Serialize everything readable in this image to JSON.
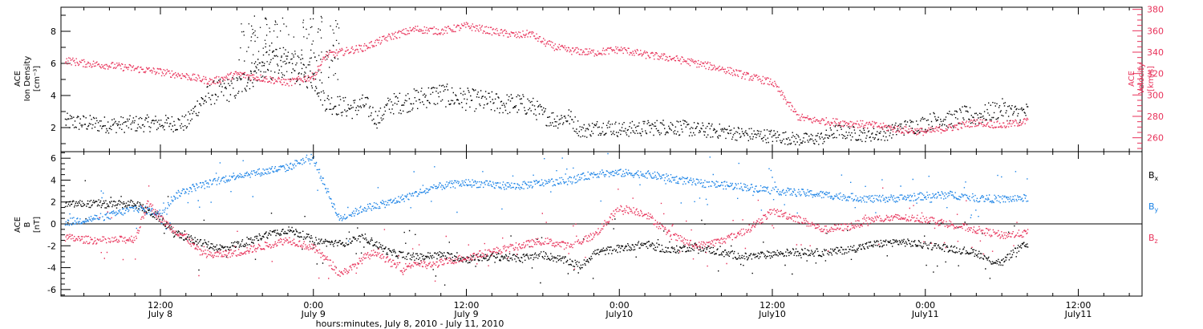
{
  "colors": {
    "black": "#000000",
    "pink": "#e8325a",
    "blue": "#1a82e6"
  },
  "x_axis": {
    "title": "hours:minutes, July  8, 2010 - July 11, 2010",
    "ticks": [
      {
        "hours": 12,
        "time": "12:00",
        "date": "July 8"
      },
      {
        "hours": 24,
        "time": "0:00",
        "date": "July 9"
      },
      {
        "hours": 36,
        "time": "12:00",
        "date": "July 9"
      },
      {
        "hours": 48,
        "time": "0:00",
        "date": "July10"
      },
      {
        "hours": 60,
        "time": "12:00",
        "date": "July10"
      },
      {
        "hours": 72,
        "time": "0:00",
        "date": "July11"
      },
      {
        "hours": 84,
        "time": "12:00",
        "date": "July11"
      }
    ],
    "xlim_hours": [
      4.2,
      89.0
    ],
    "note": "x values are hours after 0:00 July 8, 2010"
  },
  "chart_data": [
    {
      "type": "scatter",
      "panel": "top",
      "ylabel_left": [
        "ACE",
        "Ion Density",
        "[cm⁻³]"
      ],
      "ylabel_right": [
        "ACE",
        "Velocity",
        "[km/s]"
      ],
      "ylim_left": [
        0.5,
        9.5
      ],
      "ylim_right": [
        247,
        382
      ],
      "left_ticks": [
        "2",
        "4",
        "6",
        "8"
      ],
      "right_ticks": [
        "260",
        "280",
        "300",
        "320",
        "340",
        "360",
        "380"
      ],
      "series": [
        {
          "color": "#000000",
          "axis": "left",
          "x": [
            4.5,
            8,
            11,
            14,
            15,
            16,
            18,
            20,
            21,
            22,
            23,
            24,
            25,
            26,
            27,
            28,
            29,
            30,
            31,
            32,
            33,
            34,
            35,
            36,
            37,
            38,
            39,
            40,
            41,
            42,
            43,
            44,
            45,
            46,
            47,
            48,
            50,
            52,
            54,
            56,
            58,
            60,
            61,
            62,
            63,
            64,
            65,
            66,
            67,
            68,
            69,
            70,
            71,
            72,
            73,
            74,
            75,
            76,
            77,
            78,
            79,
            80
          ],
          "y": [
            2.4,
            2.2,
            2.3,
            2.3,
            3.5,
            4.2,
            4.5,
            6.0,
            6.5,
            5.8,
            5.5,
            5.2,
            3.6,
            3.4,
            3.2,
            3.5,
            2.5,
            3.5,
            3.6,
            3.8,
            4.0,
            4.1,
            3.9,
            3.8,
            3.7,
            3.6,
            3.5,
            3.5,
            3.4,
            2.8,
            2.5,
            2.7,
            1.8,
            2.0,
            2.1,
            1.9,
            2.0,
            2.1,
            1.9,
            1.8,
            1.6,
            1.5,
            1.4,
            1.3,
            1.3,
            1.4,
            1.8,
            1.7,
            1.6,
            1.6,
            1.7,
            2.0,
            2.1,
            2.3,
            2.6,
            2.5,
            2.8,
            2.7,
            3.0,
            3.2,
            2.9,
            3.0
          ]
        },
        {
          "color": "#e8325a",
          "axis": "right",
          "x": [
            4.5,
            6,
            8,
            10,
            12,
            14,
            16,
            18,
            20,
            22,
            24,
            25,
            26,
            28,
            30,
            32,
            34,
            36,
            38,
            40,
            41,
            42,
            43,
            44,
            46,
            48,
            50,
            52,
            54,
            56,
            58,
            59,
            60,
            61,
            62,
            63,
            64,
            66,
            68,
            70,
            72,
            74,
            76,
            78,
            80
          ],
          "y": [
            333,
            330,
            328,
            325,
            322,
            318,
            313,
            320,
            316,
            312,
            318,
            338,
            340,
            345,
            355,
            362,
            360,
            365,
            360,
            356,
            358,
            350,
            345,
            342,
            340,
            343,
            338,
            335,
            330,
            325,
            318,
            315,
            312,
            296,
            280,
            277,
            276,
            274,
            272,
            268,
            266,
            270,
            275,
            272,
            276
          ]
        }
      ]
    },
    {
      "type": "scatter",
      "panel": "bottom",
      "ylabel_left": [
        "ACE",
        "B",
        "[nT]"
      ],
      "ylim": [
        -6.6,
        6.6
      ],
      "left_ticks": [
        "-6",
        "-4",
        "-2",
        "0",
        "2",
        "4",
        "6"
      ],
      "legend": [
        {
          "name": "B",
          "sub": "x",
          "color": "#000000"
        },
        {
          "name": "B",
          "sub": "y",
          "color": "#1a82e6"
        },
        {
          "name": "B",
          "sub": "z",
          "color": "#e8325a"
        }
      ],
      "series": [
        {
          "name": "Bx",
          "color": "#000000",
          "x": [
            4.5,
            6,
            8,
            10,
            11,
            12,
            13,
            14,
            15,
            16,
            17,
            18,
            19,
            20,
            22,
            23,
            24,
            26,
            28,
            30,
            32,
            34,
            36,
            38,
            40,
            42,
            44,
            45,
            46,
            48,
            50,
            52,
            54,
            56,
            58,
            60,
            62,
            64,
            66,
            68,
            70,
            72,
            74,
            76,
            77,
            78,
            79,
            80
          ],
          "y": [
            1.8,
            1.9,
            1.8,
            1.9,
            1.2,
            0.5,
            -0.8,
            -1.2,
            -1.6,
            -2.0,
            -2.2,
            -1.8,
            -1.6,
            -1.0,
            -0.5,
            -0.9,
            -1.5,
            -1.8,
            -1.2,
            -2.6,
            -3.0,
            -2.8,
            -3.2,
            -2.9,
            -3.1,
            -2.8,
            -3.4,
            -3.8,
            -2.6,
            -2.2,
            -1.8,
            -2.4,
            -2.0,
            -2.6,
            -3.0,
            -2.7,
            -2.5,
            -2.6,
            -2.3,
            -1.8,
            -1.6,
            -1.9,
            -2.2,
            -2.6,
            -3.3,
            -3.5,
            -2.4,
            -1.8
          ]
        },
        {
          "name": "By",
          "color": "#1a82e6",
          "x": [
            4.5,
            6,
            8,
            10,
            12,
            13,
            14,
            16,
            18,
            20,
            22,
            23,
            24,
            26,
            28,
            30,
            32,
            34,
            36,
            38,
            40,
            42,
            44,
            46,
            48,
            50,
            52,
            54,
            56,
            58,
            60,
            62,
            64,
            66,
            68,
            70,
            72,
            74,
            76,
            78,
            80
          ],
          "y": [
            0.2,
            0.4,
            0.8,
            1.5,
            1.0,
            2.5,
            3.2,
            3.8,
            4.5,
            4.8,
            5.2,
            5.8,
            5.9,
            0.5,
            1.5,
            2.0,
            2.8,
            3.5,
            3.8,
            3.6,
            3.5,
            3.8,
            4.0,
            4.6,
            4.7,
            4.6,
            4.2,
            3.8,
            3.6,
            3.4,
            3.1,
            2.9,
            2.7,
            2.5,
            2.3,
            2.4,
            2.6,
            2.7,
            2.4,
            2.3,
            2.4
          ]
        },
        {
          "name": "Bz",
          "color": "#e8325a",
          "x": [
            4.5,
            6,
            8,
            10,
            11,
            12,
            13,
            14,
            15,
            16,
            18,
            20,
            22,
            24,
            25,
            26,
            27,
            28,
            29,
            30,
            31,
            32,
            33,
            34,
            36,
            38,
            40,
            42,
            44,
            46,
            48,
            50,
            52,
            54,
            56,
            58,
            60,
            62,
            64,
            66,
            68,
            70,
            72,
            74,
            76,
            78,
            80
          ],
          "y": [
            -1.2,
            -1.4,
            -1.5,
            -1.3,
            2.0,
            0.5,
            -0.5,
            -1.2,
            -2.5,
            -2.8,
            -2.6,
            -2.0,
            -1.4,
            -2.2,
            -3.2,
            -4.5,
            -4.0,
            -3.0,
            -2.5,
            -3.5,
            -4.0,
            -3.5,
            -3.8,
            -3.5,
            -3.0,
            -2.5,
            -2.0,
            -1.5,
            -2.0,
            -1.0,
            1.5,
            1.0,
            -1.0,
            -2.0,
            -1.5,
            -0.5,
            1.2,
            0.5,
            -0.5,
            -0.2,
            0.5,
            0.6,
            0.5,
            0.0,
            -0.5,
            -1.0,
            -0.8
          ]
        }
      ]
    }
  ]
}
